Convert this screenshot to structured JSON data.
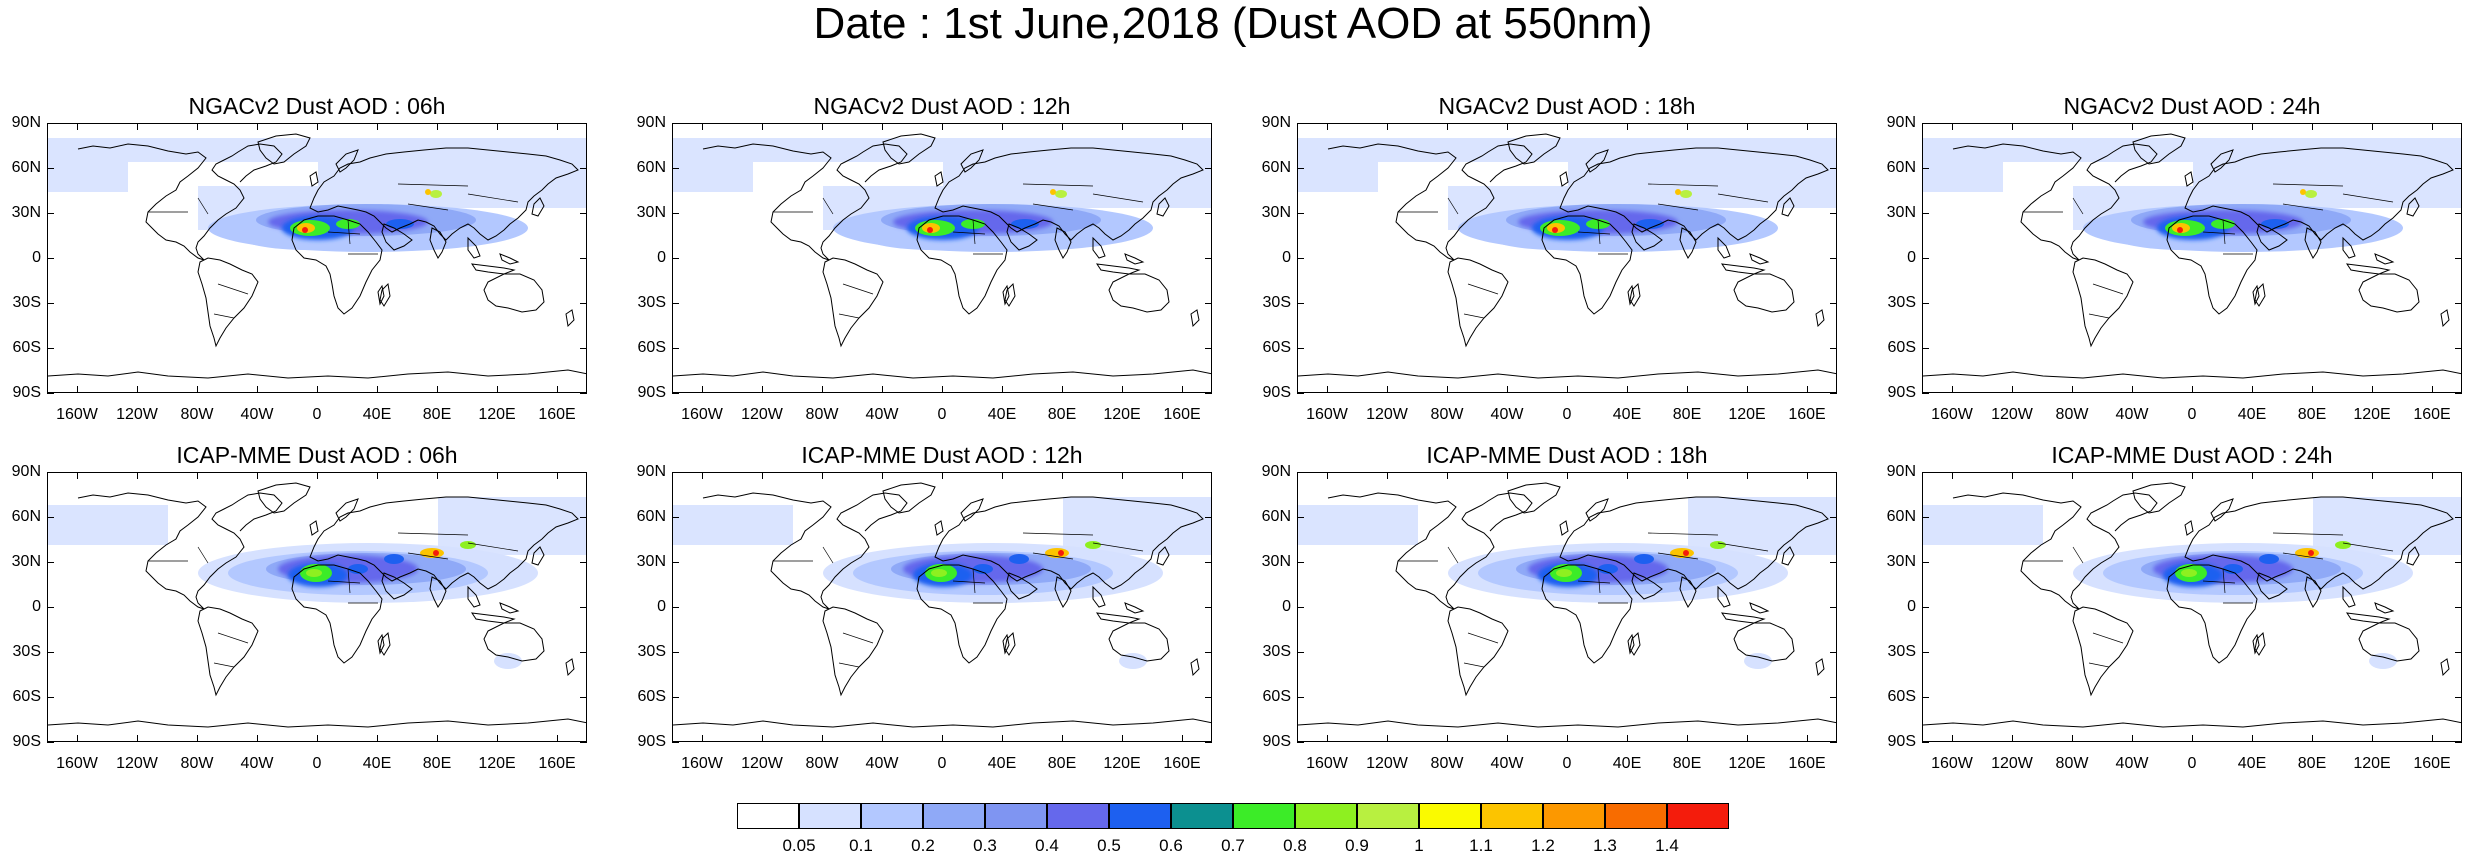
{
  "page": {
    "title": "Date : 1st June,2018 (Dust AOD at 550nm)"
  },
  "panels": [
    {
      "title": "NGACv2 Dust AOD : 06h",
      "model": "NGACv2",
      "lead": "06h"
    },
    {
      "title": "NGACv2 Dust AOD : 12h",
      "model": "NGACv2",
      "lead": "12h"
    },
    {
      "title": "NGACv2 Dust AOD : 18h",
      "model": "NGACv2",
      "lead": "18h"
    },
    {
      "title": "NGACv2 Dust AOD : 24h",
      "model": "NGACv2",
      "lead": "24h"
    },
    {
      "title": "ICAP-MME Dust AOD : 06h",
      "model": "ICAP-MME",
      "lead": "06h"
    },
    {
      "title": "ICAP-MME Dust AOD : 12h",
      "model": "ICAP-MME",
      "lead": "12h"
    },
    {
      "title": "ICAP-MME Dust AOD : 18h",
      "model": "ICAP-MME",
      "lead": "18h"
    },
    {
      "title": "ICAP-MME Dust AOD : 24h",
      "model": "ICAP-MME",
      "lead": "24h"
    }
  ],
  "axes": {
    "lat_labels": [
      "90N",
      "60N",
      "30N",
      "0",
      "30S",
      "60S",
      "90S"
    ],
    "lat_values": [
      90,
      60,
      30,
      0,
      -30,
      -60,
      -90
    ],
    "lon_labels": [
      "160W",
      "120W",
      "80W",
      "40W",
      "0",
      "40E",
      "80E",
      "120E",
      "160E"
    ],
    "lon_values": [
      -160,
      -120,
      -80,
      -40,
      0,
      40,
      80,
      120,
      160
    ],
    "lon_range": [
      -180,
      180
    ],
    "lat_range": [
      -90,
      90
    ]
  },
  "colorbar": {
    "labels": [
      "0.05",
      "0.1",
      "0.2",
      "0.3",
      "0.4",
      "0.5",
      "0.6",
      "0.7",
      "0.8",
      "0.9",
      "1",
      "1.1",
      "1.2",
      "1.3",
      "1.4"
    ],
    "colors": [
      "#ffffff",
      "#d6e1ff",
      "#b3c8ff",
      "#8fa9f7",
      "#7f95f2",
      "#6568ec",
      "#1d60f0",
      "#0c9090",
      "#3cec28",
      "#8ef020",
      "#b8f040",
      "#fafa00",
      "#fcc400",
      "#fc9800",
      "#f86c00",
      "#f41c0c"
    ]
  },
  "chart_data": {
    "type": "heatmap",
    "variable": "Dust AOD at 550nm",
    "date": "1st June,2018",
    "features": {
      "light_band_lat_range": [
        -5,
        75
      ],
      "dust_core_sahara": {
        "lon": [
          -15,
          35
        ],
        "lat": [
          12,
          30
        ],
        "level": "0.8-1.4"
      },
      "dust_middle_east": {
        "lon": [
          40,
          65
        ],
        "lat": [
          15,
          35
        ],
        "level": "0.5-0.9"
      },
      "dust_taklimakan": {
        "lon": [
          75,
          90
        ],
        "lat": [
          36,
          42
        ],
        "level": "0.9-1.4"
      }
    }
  }
}
